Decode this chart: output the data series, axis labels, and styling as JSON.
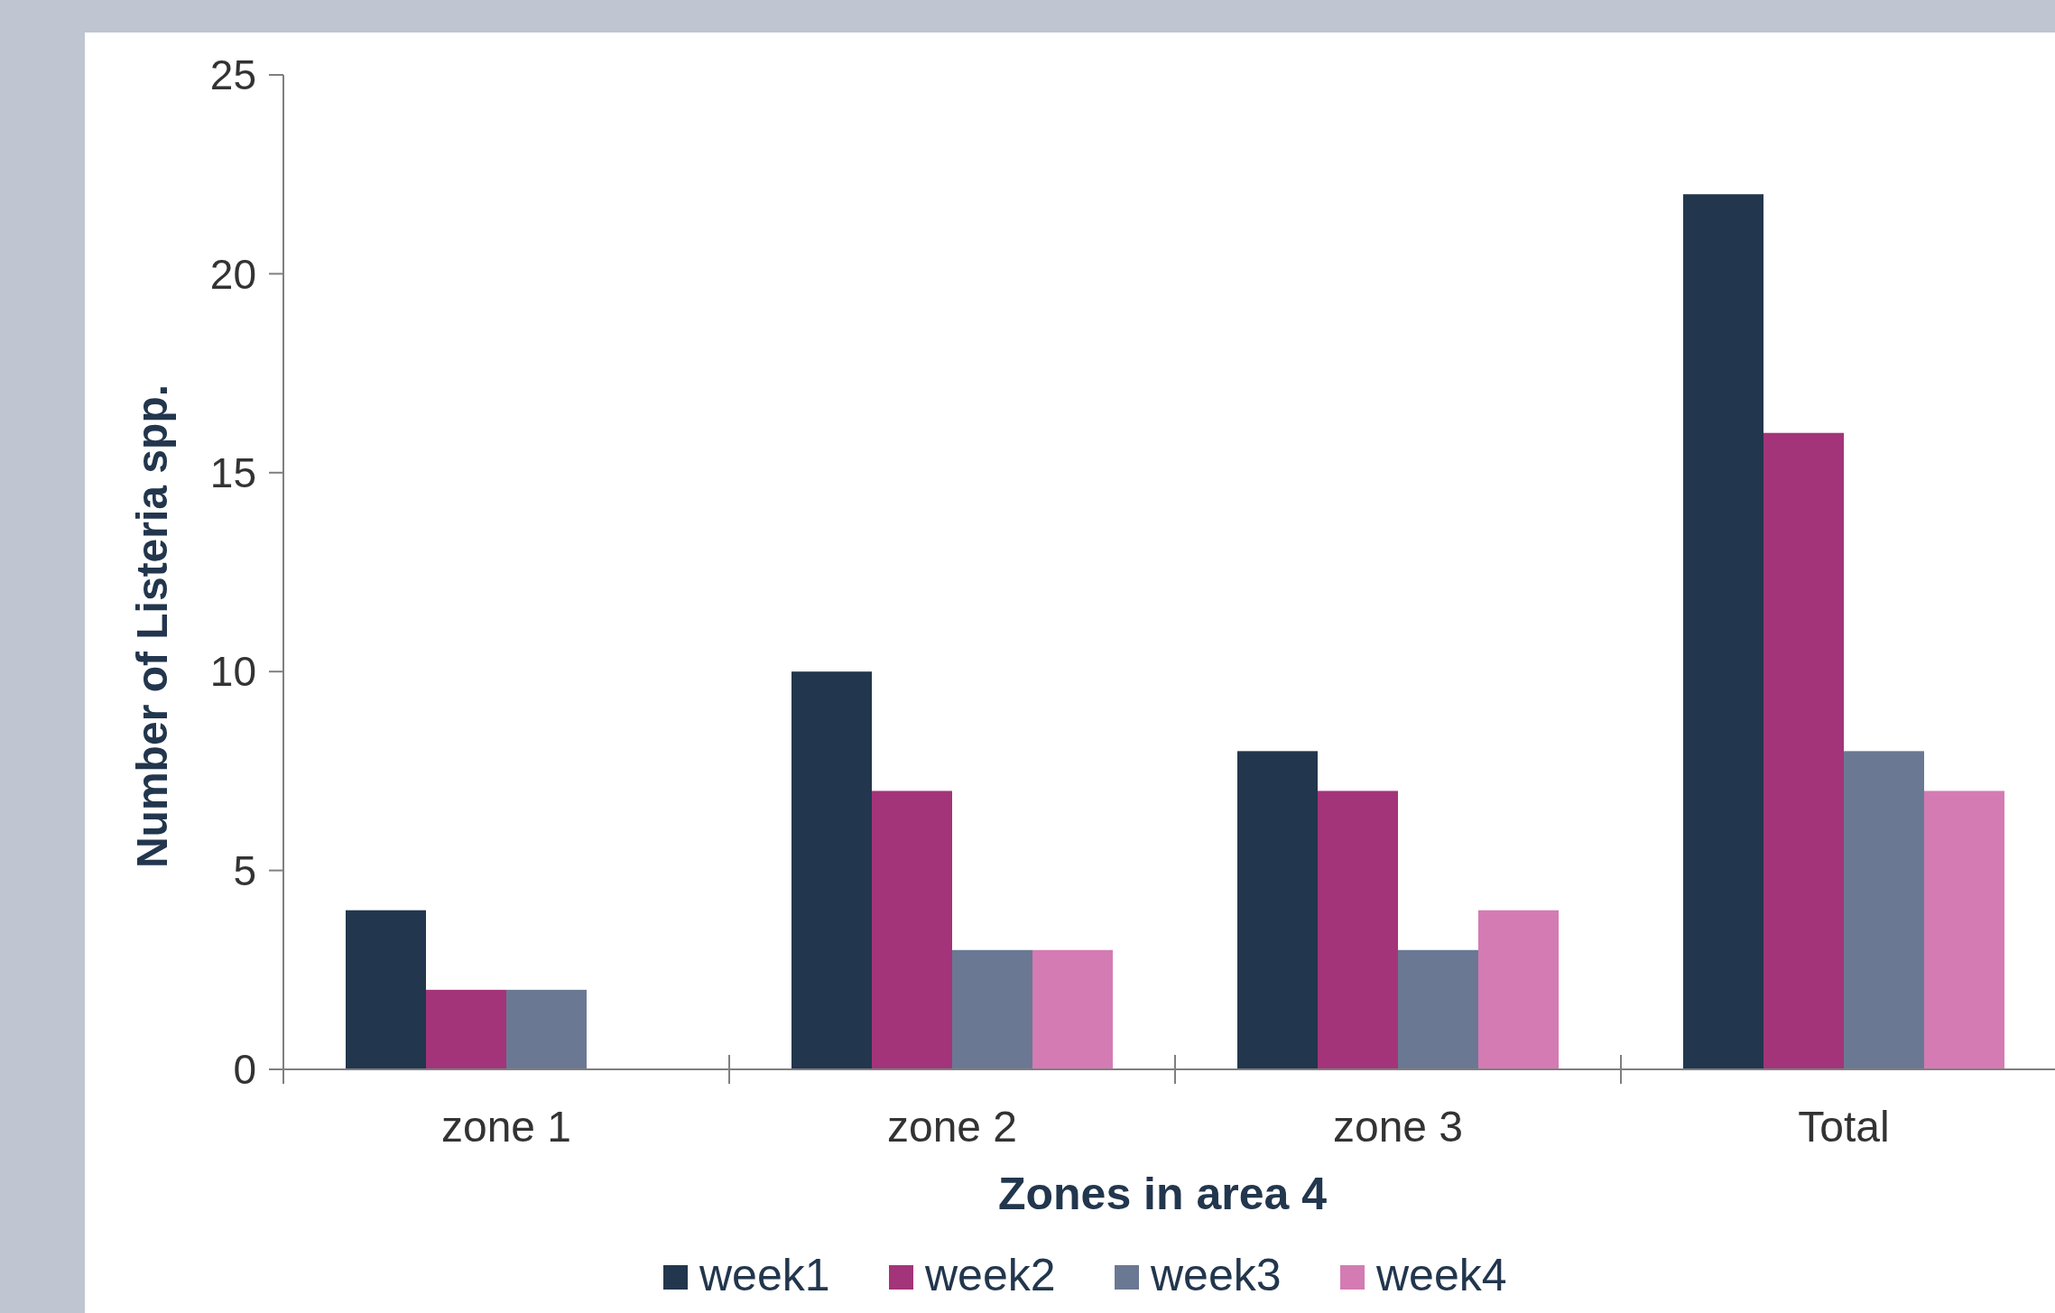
{
  "chart_data": {
    "type": "bar",
    "xlabel": "Zones in area 4",
    "ylabel": "Number of Listeria spp.",
    "categories": [
      "zone 1",
      "zone 2",
      "zone 3",
      "Total"
    ],
    "series": [
      {
        "name": "week1",
        "color": "#22364d",
        "values": [
          4,
          10,
          8,
          22
        ]
      },
      {
        "name": "week2",
        "color": "#a3347a",
        "values": [
          2,
          7,
          7,
          16
        ]
      },
      {
        "name": "week3",
        "color": "#6b7893",
        "values": [
          2,
          3,
          3,
          8
        ]
      },
      {
        "name": "week4",
        "color": "#d47bb3",
        "values": [
          null,
          3,
          4,
          7
        ]
      }
    ],
    "ylim": [
      0,
      25
    ],
    "yticks": [
      0,
      5,
      10,
      15,
      20,
      25
    ],
    "grid": false,
    "legend": "bottom"
  }
}
